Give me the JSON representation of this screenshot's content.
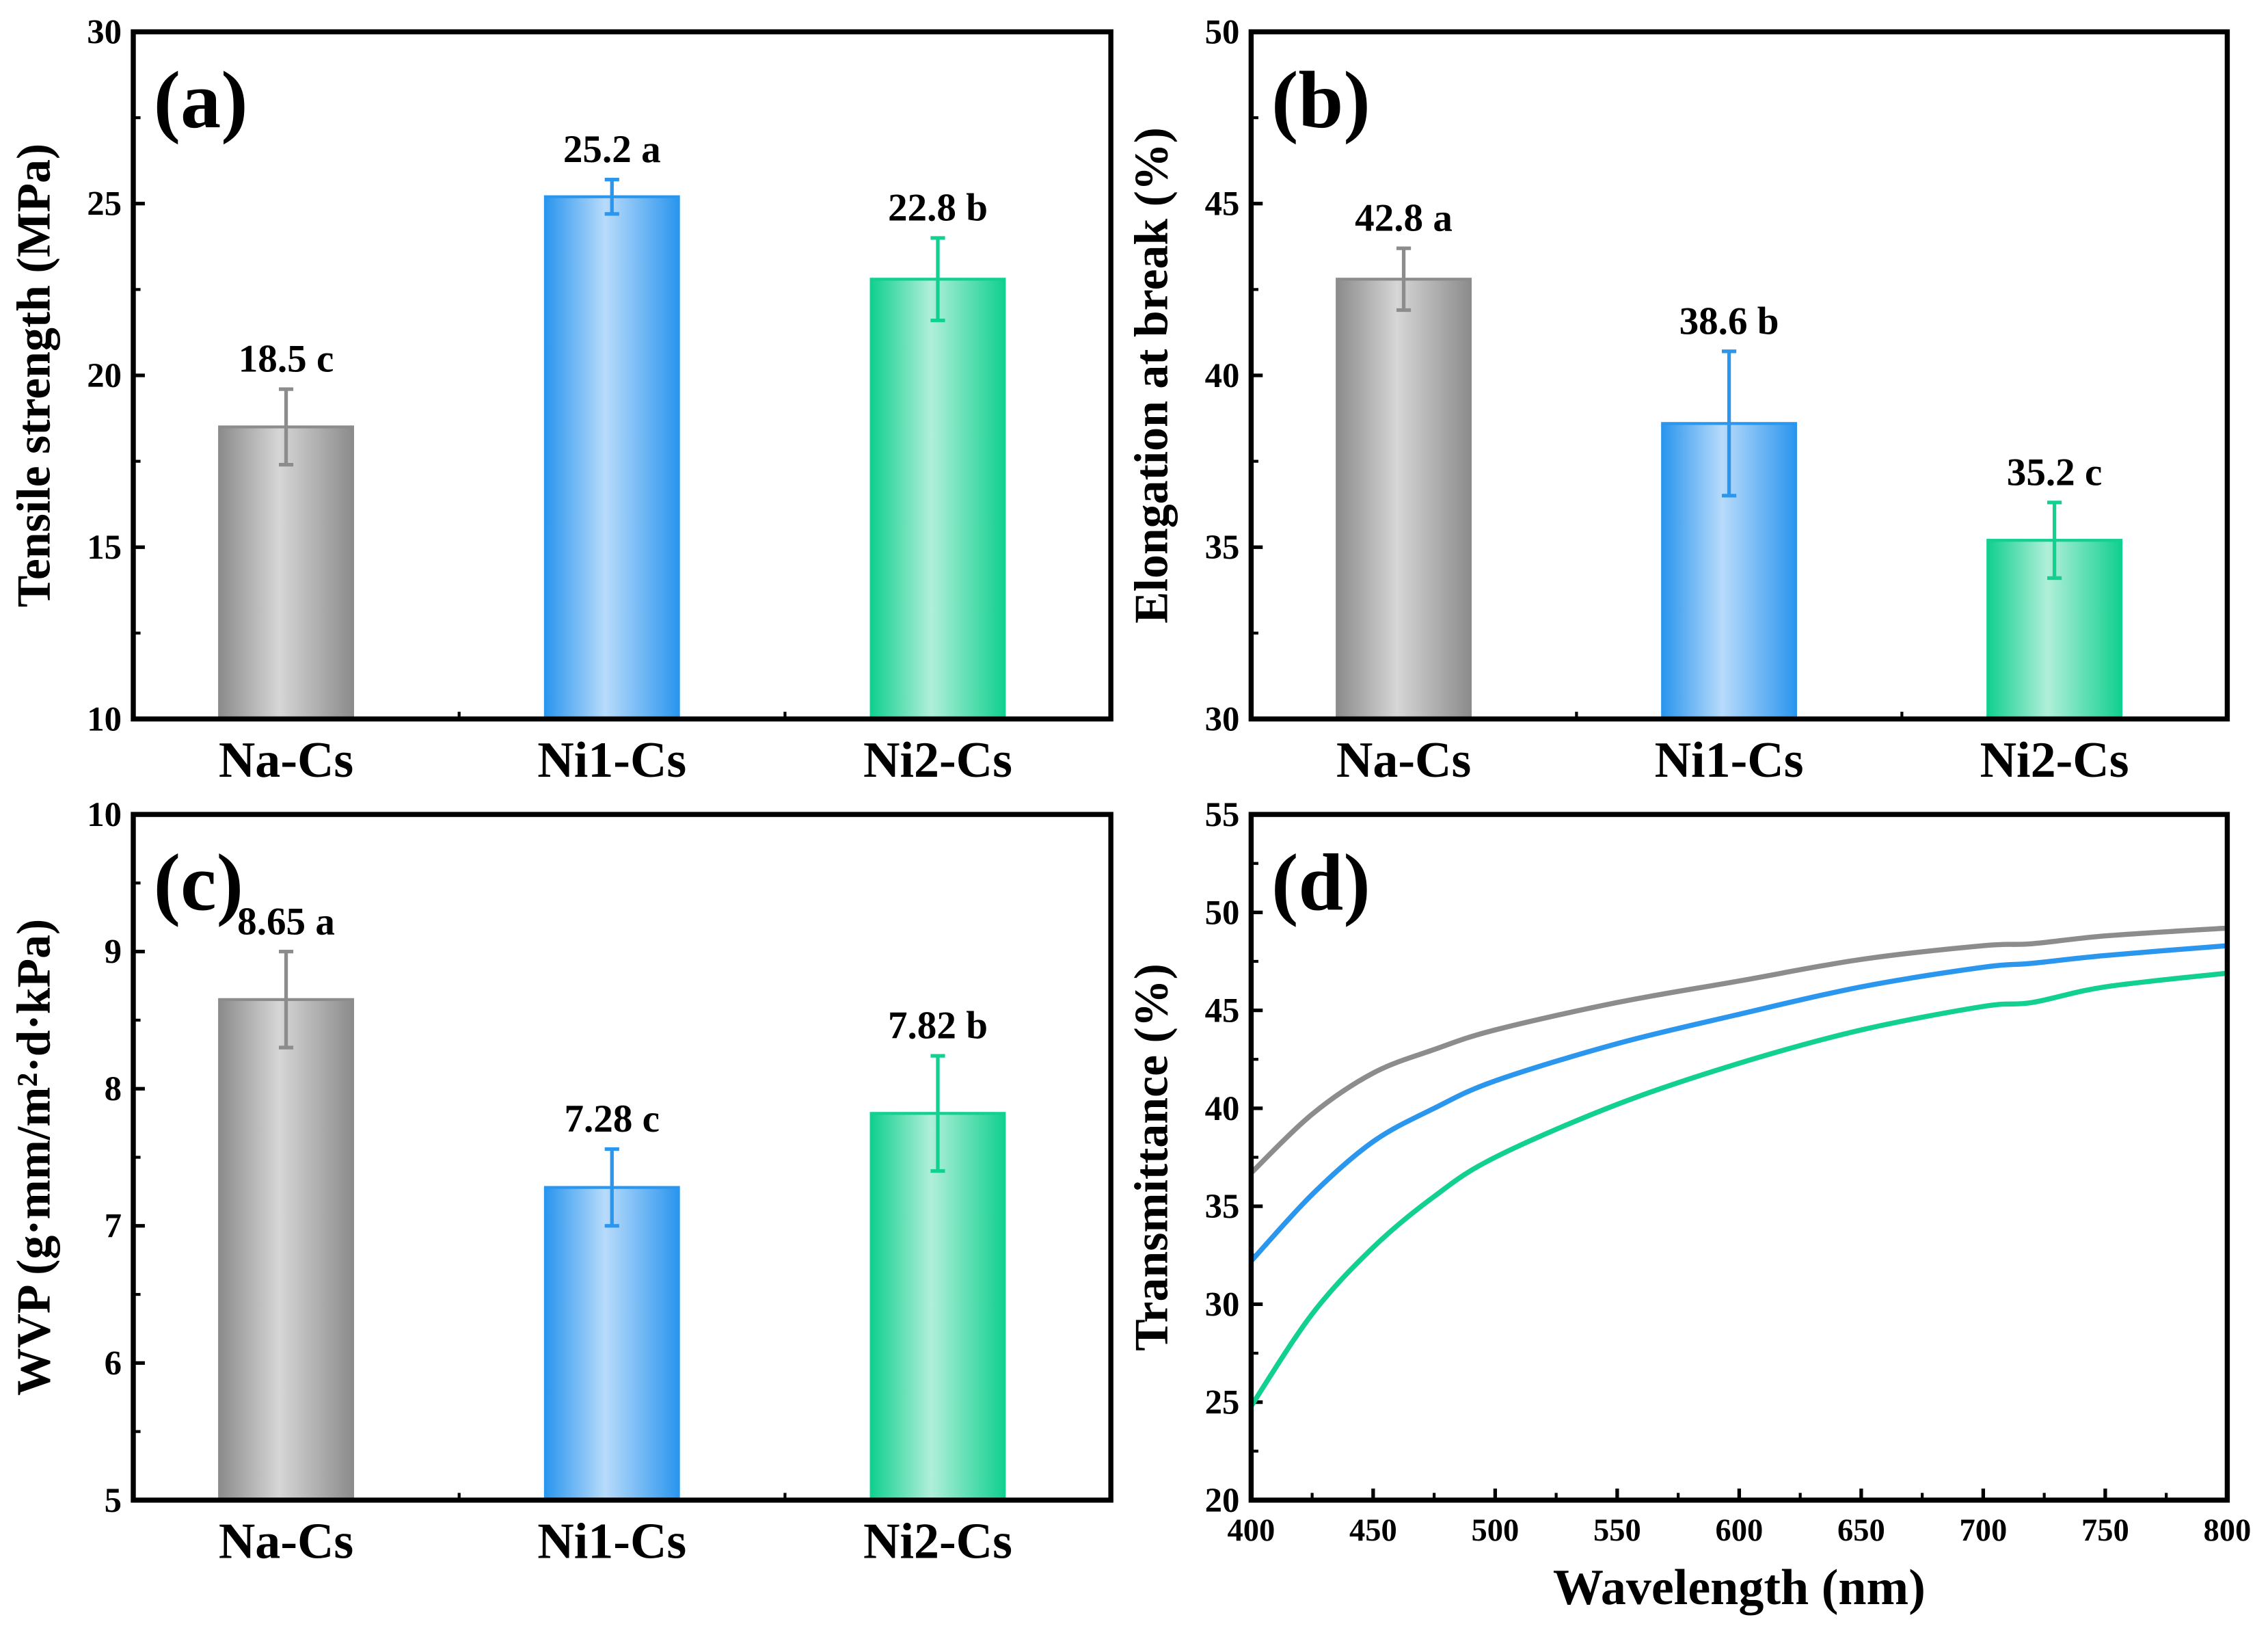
{
  "chart_data": [
    {
      "type": "bar",
      "panel_label": "(a)",
      "ylabel": "Tensile strength (MPa)",
      "categories": [
        "Na-Cs",
        "Ni1-Cs",
        "Ni2-Cs"
      ],
      "values": [
        18.5,
        25.2,
        22.8
      ],
      "errors": [
        1.1,
        0.5,
        1.2
      ],
      "data_labels": [
        "18.5 c",
        "25.2 a",
        "22.8 b"
      ],
      "ylim": [
        10,
        30
      ],
      "yticks": [
        10,
        15,
        20,
        25,
        30
      ]
    },
    {
      "type": "bar",
      "panel_label": "(b)",
      "ylabel": "Elongation at break (%)",
      "categories": [
        "Na-Cs",
        "Ni1-Cs",
        "Ni2-Cs"
      ],
      "values": [
        42.8,
        38.6,
        35.2
      ],
      "errors": [
        0.9,
        2.1,
        1.1
      ],
      "data_labels": [
        "42.8 a",
        "38.6 b",
        "35.2 c"
      ],
      "ylim": [
        30,
        50
      ],
      "yticks": [
        30,
        35,
        40,
        45,
        50
      ]
    },
    {
      "type": "bar",
      "panel_label": "(c)",
      "ylabel": "WVP (g·mm/m²·d·kPa)",
      "categories": [
        "Na-Cs",
        "Ni1-Cs",
        "Ni2-Cs"
      ],
      "values": [
        8.65,
        7.28,
        7.82
      ],
      "errors": [
        0.35,
        0.28,
        0.42
      ],
      "data_labels": [
        "8.65 a",
        "7.28 c",
        "7.82 b"
      ],
      "ylim": [
        5,
        10
      ],
      "yticks": [
        5,
        6,
        7,
        8,
        9,
        10
      ]
    },
    {
      "type": "line",
      "panel_label": "(d)",
      "xlabel": "Wavelength (nm)",
      "ylabel": "Transmittance (%)",
      "xlim": [
        400,
        800
      ],
      "ylim": [
        20,
        55
      ],
      "xticks": [
        400,
        450,
        500,
        550,
        600,
        650,
        700,
        750,
        800
      ],
      "yticks": [
        20,
        25,
        30,
        35,
        40,
        45,
        50,
        55
      ],
      "x": [
        400,
        425,
        450,
        475,
        500,
        550,
        600,
        650,
        700,
        720,
        750,
        800
      ],
      "series": [
        {
          "name": "Na-Cs",
          "values": [
            36.7,
            39.7,
            41.8,
            43.0,
            44.0,
            45.4,
            46.5,
            47.6,
            48.3,
            48.4,
            48.8,
            49.2
          ]
        },
        {
          "name": "Ni1-Cs",
          "values": [
            32.2,
            35.6,
            38.3,
            40.0,
            41.4,
            43.3,
            44.8,
            46.2,
            47.2,
            47.4,
            47.8,
            48.3
          ]
        },
        {
          "name": "Ni2-Cs",
          "values": [
            24.8,
            29.5,
            32.9,
            35.5,
            37.5,
            40.2,
            42.3,
            44.0,
            45.2,
            45.4,
            46.2,
            46.9
          ]
        }
      ]
    }
  ],
  "colors": {
    "Na-Cs": "#8c8c8c",
    "Ni1-Cs": "#2b96ee",
    "Ni2-Cs": "#12d08f",
    "Na-Cs-light": "#d6d6d6",
    "Ni1-Cs-light": "#b8dbfb",
    "Ni2-Cs-light": "#b0efd9"
  }
}
